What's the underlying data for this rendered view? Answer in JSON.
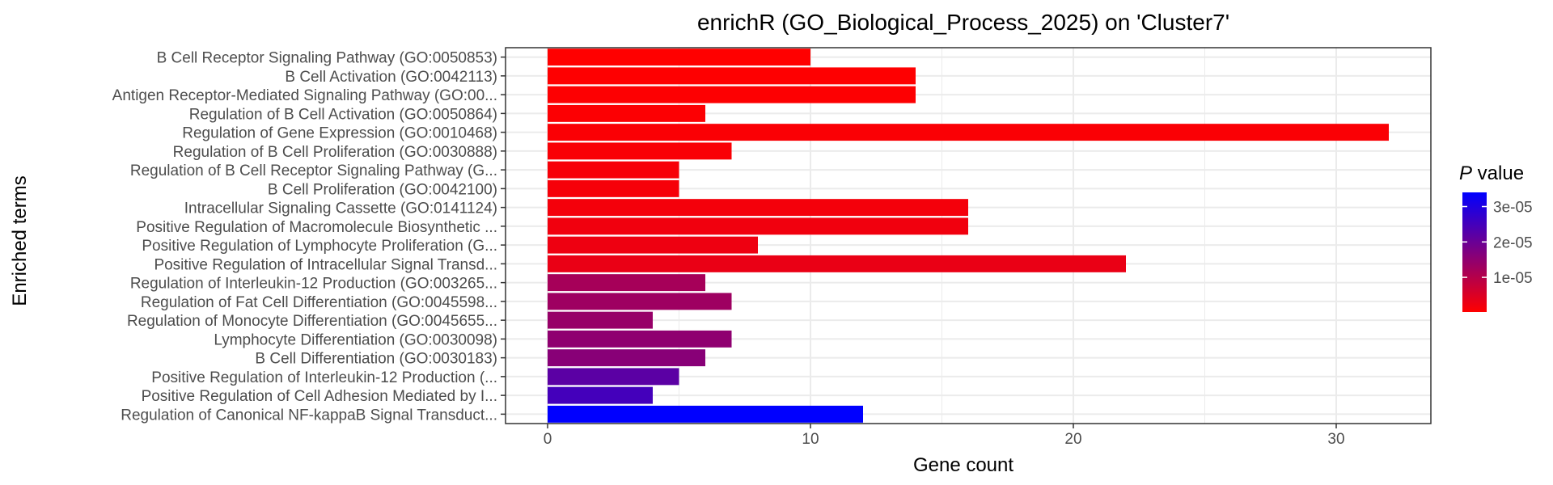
{
  "chart_data": {
    "type": "bar",
    "orientation": "horizontal",
    "title": "enrichR (GO_Biological_Process_2025) on 'Cluster7'",
    "xlabel": "Gene count",
    "ylabel": "Enriched terms",
    "xlim": [
      -1.6,
      33.6
    ],
    "xticks": [
      0,
      10,
      20,
      30
    ],
    "grid": true,
    "categories": [
      "B Cell Receptor Signaling Pathway (GO:0050853)",
      "B Cell Activation (GO:0042113)",
      "Antigen Receptor-Mediated Signaling Pathway (GO:00...",
      "Regulation of B Cell Activation (GO:0050864)",
      "Regulation of Gene Expression (GO:0010468)",
      "Regulation of B Cell Proliferation (GO:0030888)",
      "Regulation of B Cell Receptor Signaling Pathway (G...",
      "B Cell Proliferation (GO:0042100)",
      "Intracellular Signaling Cassette (GO:0141124)",
      "Positive Regulation of Macromolecule Biosynthetic ...",
      "Positive Regulation of Lymphocyte Proliferation (G...",
      "Positive Regulation of Intracellular Signal Transd...",
      "Regulation of Interleukin-12 Production (GO:003265...",
      "Regulation of Fat Cell Differentiation (GO:0045598...",
      "Regulation of Monocyte Differentiation (GO:0045655...",
      "Lymphocyte Differentiation (GO:0030098)",
      "B Cell Differentiation (GO:0030183)",
      "Positive Regulation of Interleukin-12 Production (...",
      "Positive Regulation of Cell Adhesion Mediated by I...",
      "Regulation of Canonical NF-kappaB Signal Transduct..."
    ],
    "values": [
      10,
      14,
      14,
      6,
      32,
      7,
      5,
      5,
      16,
      16,
      8,
      22,
      6,
      7,
      4,
      7,
      6,
      5,
      4,
      12
    ],
    "p_values": [
      2e-07,
      3e-07,
      4e-07,
      6e-07,
      8e-07,
      1e-06,
      1.2e-06,
      1.4e-06,
      1.7e-06,
      2e-06,
      2.5e-06,
      3e-06,
      1.2e-05,
      1.3e-05,
      1.4e-05,
      1.5e-05,
      1.6e-05,
      2.2e-05,
      2.5e-05,
      3.4e-05
    ],
    "legend": {
      "title_italic": "P",
      "title_rest": " value",
      "placement": "right",
      "ticks": [
        {
          "value": 1e-05,
          "label": "1e-05"
        },
        {
          "value": 2e-05,
          "label": "2e-05"
        },
        {
          "value": 3e-05,
          "label": "3e-05"
        }
      ],
      "range": [
        2e-07,
        3.4e-05
      ],
      "color_low": "#ff0000",
      "color_high": "#0000ff"
    }
  }
}
